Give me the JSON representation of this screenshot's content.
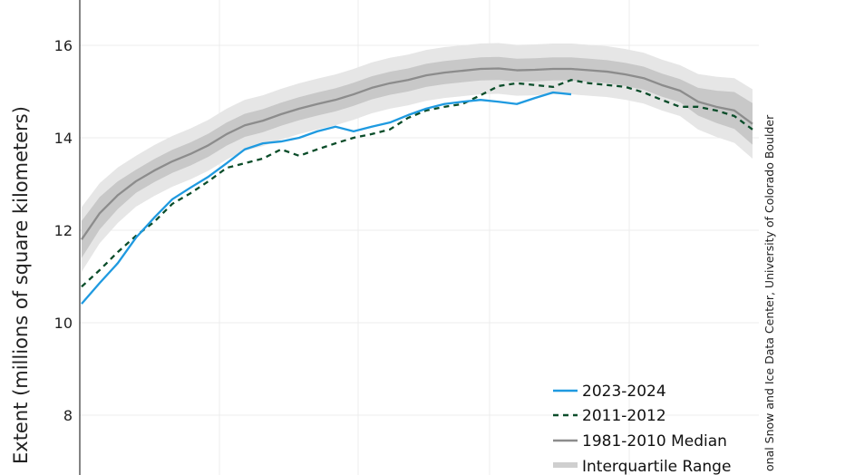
{
  "chart_data": {
    "type": "line",
    "title": "",
    "xlabel": "",
    "ylabel": "Extent (millions of square kilometers)",
    "ylim": [
      6.7,
      17
    ],
    "yticks": [
      8,
      10,
      12,
      14,
      16
    ],
    "grid": true,
    "legend_position": "bottom-right",
    "series": [
      {
        "name": "2023-2024",
        "color": "#1f9ae0",
        "style": "solid",
        "values": [
          10.41,
          10.86,
          11.29,
          11.84,
          12.27,
          12.67,
          12.92,
          13.16,
          13.45,
          13.75,
          13.88,
          13.92,
          14.0,
          14.14,
          14.24,
          14.14,
          14.24,
          14.33,
          14.49,
          14.63,
          14.73,
          14.78,
          14.82,
          14.78,
          14.73,
          14.86,
          14.98,
          14.94
        ]
      },
      {
        "name": "2011-2012",
        "color": "#0b4d2a",
        "style": "dashed",
        "values": [
          10.78,
          11.14,
          11.53,
          11.88,
          12.18,
          12.57,
          12.8,
          13.06,
          13.35,
          13.45,
          13.55,
          13.75,
          13.61,
          13.75,
          13.88,
          14.0,
          14.08,
          14.18,
          14.43,
          14.59,
          14.67,
          14.73,
          14.92,
          15.12,
          15.18,
          15.14,
          15.1,
          15.25,
          15.18,
          15.14,
          15.1,
          14.98,
          14.82,
          14.67,
          14.67,
          14.59,
          14.47,
          14.18
        ]
      },
      {
        "name": "1981-2010 Median",
        "color": "#8c8c8c",
        "style": "solid",
        "values": [
          11.8,
          12.37,
          12.76,
          13.06,
          13.29,
          13.49,
          13.65,
          13.84,
          14.08,
          14.27,
          14.37,
          14.51,
          14.63,
          14.73,
          14.82,
          14.94,
          15.08,
          15.18,
          15.25,
          15.35,
          15.41,
          15.45,
          15.49,
          15.5,
          15.46,
          15.47,
          15.49,
          15.49,
          15.46,
          15.43,
          15.37,
          15.29,
          15.14,
          15.02,
          14.78,
          14.67,
          14.59,
          14.3
        ]
      }
    ],
    "bands": [
      {
        "name": "",
        "color": "#e6e6e6",
        "around": "1981-2010 Median",
        "half_width": 0.55
      },
      {
        "name": "Interquartile Range",
        "color": "#c8c8c8",
        "around": "1981-2010 Median",
        "half_width": 0.25
      }
    ],
    "legend": [
      "2023-2024",
      "2011-2012",
      "1981-2010 Median",
      "Interquartile Range"
    ],
    "credit": "onal Snow and Ice Data Center, University of Colorado Boulder"
  }
}
